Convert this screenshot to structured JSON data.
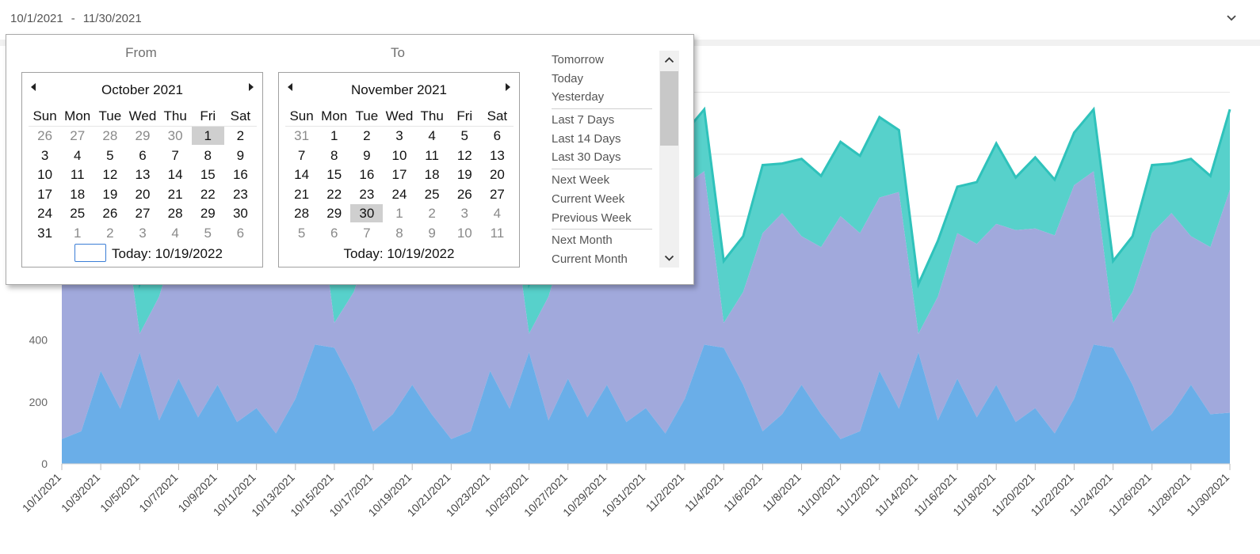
{
  "range": {
    "from": "10/1/2021",
    "separator": "-",
    "to": "11/30/2021"
  },
  "popup": {
    "from_title": "From",
    "to_title": "To",
    "from_calendar": {
      "month_label": "October 2021",
      "weekdays": [
        "Sun",
        "Mon",
        "Tue",
        "Wed",
        "Thu",
        "Fri",
        "Sat"
      ],
      "weeks": [
        [
          {
            "d": "26",
            "o": 1
          },
          {
            "d": "27",
            "o": 1
          },
          {
            "d": "28",
            "o": 1
          },
          {
            "d": "29",
            "o": 1
          },
          {
            "d": "30",
            "o": 1
          },
          {
            "d": "1",
            "s": 1
          },
          {
            "d": "2"
          }
        ],
        [
          {
            "d": "3"
          },
          {
            "d": "4"
          },
          {
            "d": "5"
          },
          {
            "d": "6"
          },
          {
            "d": "7"
          },
          {
            "d": "8"
          },
          {
            "d": "9"
          }
        ],
        [
          {
            "d": "10"
          },
          {
            "d": "11"
          },
          {
            "d": "12"
          },
          {
            "d": "13"
          },
          {
            "d": "14"
          },
          {
            "d": "15"
          },
          {
            "d": "16"
          }
        ],
        [
          {
            "d": "17"
          },
          {
            "d": "18"
          },
          {
            "d": "19"
          },
          {
            "d": "20"
          },
          {
            "d": "21"
          },
          {
            "d": "22"
          },
          {
            "d": "23"
          }
        ],
        [
          {
            "d": "24"
          },
          {
            "d": "25"
          },
          {
            "d": "26"
          },
          {
            "d": "27"
          },
          {
            "d": "28"
          },
          {
            "d": "29"
          },
          {
            "d": "30"
          }
        ],
        [
          {
            "d": "31"
          },
          {
            "d": "1",
            "o": 1
          },
          {
            "d": "2",
            "o": 1
          },
          {
            "d": "3",
            "o": 1
          },
          {
            "d": "4",
            "o": 1
          },
          {
            "d": "5",
            "o": 1
          },
          {
            "d": "6",
            "o": 1
          }
        ]
      ],
      "today_label": "Today: 10/19/2022"
    },
    "to_calendar": {
      "month_label": "November 2021",
      "weekdays": [
        "Sun",
        "Mon",
        "Tue",
        "Wed",
        "Thu",
        "Fri",
        "Sat"
      ],
      "weeks": [
        [
          {
            "d": "31",
            "o": 1
          },
          {
            "d": "1"
          },
          {
            "d": "2"
          },
          {
            "d": "3"
          },
          {
            "d": "4"
          },
          {
            "d": "5"
          },
          {
            "d": "6"
          }
        ],
        [
          {
            "d": "7"
          },
          {
            "d": "8"
          },
          {
            "d": "9"
          },
          {
            "d": "10"
          },
          {
            "d": "11"
          },
          {
            "d": "12"
          },
          {
            "d": "13"
          }
        ],
        [
          {
            "d": "14"
          },
          {
            "d": "15"
          },
          {
            "d": "16"
          },
          {
            "d": "17"
          },
          {
            "d": "18"
          },
          {
            "d": "19"
          },
          {
            "d": "20"
          }
        ],
        [
          {
            "d": "21"
          },
          {
            "d": "22"
          },
          {
            "d": "23"
          },
          {
            "d": "24"
          },
          {
            "d": "25"
          },
          {
            "d": "26"
          },
          {
            "d": "27"
          }
        ],
        [
          {
            "d": "28"
          },
          {
            "d": "29"
          },
          {
            "d": "30",
            "s": 1
          },
          {
            "d": "1",
            "o": 1
          },
          {
            "d": "2",
            "o": 1
          },
          {
            "d": "3",
            "o": 1
          },
          {
            "d": "4",
            "o": 1
          }
        ],
        [
          {
            "d": "5",
            "o": 1
          },
          {
            "d": "6",
            "o": 1
          },
          {
            "d": "7",
            "o": 1
          },
          {
            "d": "8",
            "o": 1
          },
          {
            "d": "9",
            "o": 1
          },
          {
            "d": "10",
            "o": 1
          },
          {
            "d": "11",
            "o": 1
          }
        ]
      ],
      "today_label": "Today: 10/19/2022"
    },
    "presets": [
      [
        "Tomorrow",
        "Today",
        "Yesterday"
      ],
      [
        "Last 7 Days",
        "Last 14 Days",
        "Last 30 Days"
      ],
      [
        "Next Week",
        "Current Week",
        "Previous Week"
      ],
      [
        "Next Month",
        "Current Month"
      ]
    ]
  },
  "colors": {
    "series_blue": "#6aaee8",
    "series_purple": "#a1a9dc",
    "series_teal": "#57d1cb",
    "teal_line": "#2fc2bb",
    "selected_day_bg": "#cfcfcf"
  },
  "chart_data": {
    "type": "area",
    "stacked": true,
    "y_ticks": [
      "0",
      "200",
      "400"
    ],
    "ylim": [
      0,
      1200
    ],
    "x": [
      "10/1/2021",
      "10/2/2021",
      "10/3/2021",
      "10/4/2021",
      "10/5/2021",
      "10/6/2021",
      "10/7/2021",
      "10/8/2021",
      "10/9/2021",
      "10/10/2021",
      "10/11/2021",
      "10/12/2021",
      "10/13/2021",
      "10/14/2021",
      "10/15/2021",
      "10/16/2021",
      "10/17/2021",
      "10/18/2021",
      "10/19/2021",
      "10/20/2021",
      "10/21/2021",
      "10/22/2021",
      "10/23/2021",
      "10/24/2021",
      "10/25/2021",
      "10/26/2021",
      "10/27/2021",
      "10/28/2021",
      "10/29/2021",
      "10/30/2021",
      "10/31/2021",
      "11/1/2021",
      "11/2/2021",
      "11/3/2021",
      "11/4/2021",
      "11/5/2021",
      "11/6/2021",
      "11/7/2021",
      "11/8/2021",
      "11/9/2021",
      "11/10/2021",
      "11/11/2021",
      "11/12/2021",
      "11/13/2021",
      "11/14/2021",
      "11/15/2021",
      "11/16/2021",
      "11/17/2021",
      "11/18/2021",
      "11/19/2021",
      "11/20/2021",
      "11/21/2021",
      "11/22/2021",
      "11/23/2021",
      "11/24/2021",
      "11/25/2021",
      "11/26/2021",
      "11/27/2021",
      "11/28/2021",
      "11/29/2021",
      "11/30/2021"
    ],
    "x_tick_labels": [
      "10/1/2021",
      "10/3/2021",
      "10/5/2021",
      "10/7/2021",
      "10/9/2021",
      "10/11/2021",
      "10/13/2021",
      "10/15/2021",
      "10/17/2021",
      "10/19/2021",
      "10/21/2021",
      "10/23/2021",
      "10/25/2021",
      "10/27/2021",
      "10/29/2021",
      "10/31/2021",
      "11/2/2021",
      "11/4/2021",
      "11/6/2021",
      "11/8/2021",
      "11/10/2021",
      "11/12/2021",
      "11/14/2021",
      "11/16/2021",
      "11/18/2021",
      "11/20/2021",
      "11/22/2021",
      "11/24/2021",
      "11/26/2021",
      "11/28/2021",
      "11/30/2021"
    ],
    "series": [
      {
        "values": [
          80,
          105,
          300,
          178,
          360,
          140,
          275,
          150,
          255,
          135,
          180,
          98,
          210,
          385,
          375,
          255,
          105,
          160,
          255,
          160,
          80,
          105,
          300,
          178,
          360,
          140,
          275,
          150,
          255,
          135,
          180,
          98,
          210,
          385,
          375,
          255,
          105,
          160,
          255,
          160,
          80,
          105,
          300,
          178,
          360,
          140,
          275,
          150,
          255,
          135,
          180,
          98,
          210,
          385,
          375,
          255,
          105,
          160,
          255,
          160,
          165
        ]
      },
      {
        "values": [
          600,
          620,
          560,
          700,
          60,
          400,
          470,
          560,
          520,
          620,
          580,
          640,
          690,
          560,
          80,
          300,
          640,
          650,
          480,
          540,
          720,
          640,
          560,
          700,
          60,
          400,
          470,
          560,
          520,
          620,
          580,
          640,
          690,
          560,
          80,
          300,
          640,
          650,
          480,
          540,
          720,
          640,
          560,
          700,
          60,
          400,
          470,
          560,
          520,
          620,
          580,
          640,
          690,
          560,
          80,
          300,
          640,
          650,
          480,
          540,
          720
        ]
      },
      {
        "values": [
          250,
          240,
          260,
          200,
          160,
          180,
          150,
          200,
          260,
          170,
          230,
          180,
          170,
          200,
          200,
          180,
          220,
          160,
          250,
          230,
          240,
          250,
          260,
          200,
          160,
          180,
          150,
          200,
          260,
          170,
          230,
          180,
          170,
          200,
          200,
          180,
          220,
          160,
          250,
          230,
          240,
          250,
          260,
          200,
          160,
          180,
          150,
          200,
          260,
          170,
          230,
          180,
          170,
          200,
          200,
          180,
          220,
          160,
          250,
          230,
          260
        ]
      }
    ]
  }
}
